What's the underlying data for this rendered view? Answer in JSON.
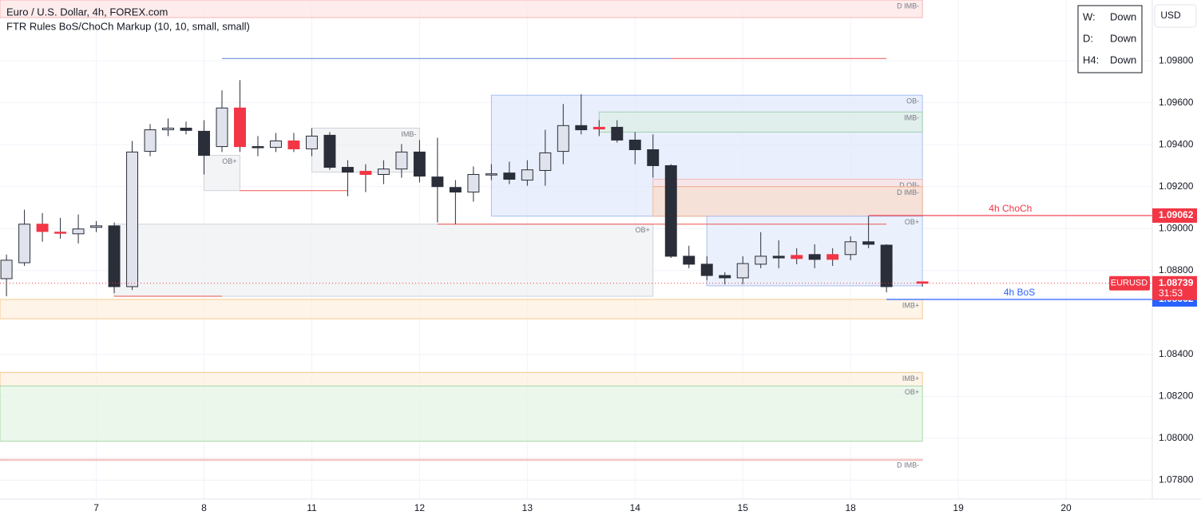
{
  "chart_data": {
    "type": "candlestick",
    "title": "Euro / U.S. Dollar, 4h, FOREX.com",
    "subtitle": "FTR Rules BoS/ChoCh Markup (10, 10, small, small)",
    "currency": "USD",
    "trend_table": [
      [
        "W:",
        "Down"
      ],
      [
        "D:",
        "Down"
      ],
      [
        "H4:",
        "Down"
      ]
    ],
    "xlim": [
      -0.36,
      63.8
    ],
    "ylim": [
      1.0771,
      1.1009
    ],
    "xticks": [
      {
        "value": 5,
        "label": "7"
      },
      {
        "value": 11,
        "label": "8"
      },
      {
        "value": 17,
        "label": "11"
      },
      {
        "value": 23,
        "label": "12"
      },
      {
        "value": 29,
        "label": "13"
      },
      {
        "value": 35,
        "label": "14"
      },
      {
        "value": 41,
        "label": "15"
      },
      {
        "value": 47,
        "label": "18"
      },
      {
        "value": 53,
        "label": "19"
      },
      {
        "value": 59,
        "label": "20"
      }
    ],
    "yticks": [
      {
        "value": 1.078,
        "label": "1.07800"
      },
      {
        "value": 1.08,
        "label": "1.08000"
      },
      {
        "value": 1.082,
        "label": "1.08200"
      },
      {
        "value": 1.084,
        "label": "1.08400"
      },
      {
        "value": 1.088,
        "label": "1.08800"
      },
      {
        "value": 1.09,
        "label": "1.09000"
      },
      {
        "value": 1.092,
        "label": "1.09200"
      },
      {
        "value": 1.094,
        "label": "1.09400"
      },
      {
        "value": 1.096,
        "label": "1.09600"
      },
      {
        "value": 1.098,
        "label": "1.09800"
      }
    ],
    "zones": [
      {
        "x0": -0.36,
        "x1": 51,
        "from": 1.1009,
        "to": 1.10006,
        "label": "D IMB-",
        "fill": "#fde4e4",
        "stroke": "#f5b5b5"
      },
      {
        "x0": 27,
        "x1": 51,
        "from": 1.09636,
        "to": 1.09059,
        "label": "OB-",
        "fill": "#dfe8fb",
        "stroke": "#a9bff2"
      },
      {
        "x0": 33,
        "x1": 51,
        "from": 1.09556,
        "to": 1.0946,
        "label": "IMB-",
        "fill": "#dcefe4",
        "stroke": "#9fd1b2"
      },
      {
        "x0": 36,
        "x1": 51,
        "from": 1.09235,
        "to": 1.092,
        "label": "D OB-",
        "fill": "#fbe2e2",
        "stroke": "#f2b8b8"
      },
      {
        "x0": 36,
        "x1": 51,
        "from": 1.092,
        "to": 1.09059,
        "label": "D IMB-",
        "fill": "#fbdcc9",
        "stroke": "#f4b48f"
      },
      {
        "x0": 39,
        "x1": 51,
        "from": 1.09059,
        "to": 1.08727,
        "label": "OB+",
        "fill": "#e3ebfb",
        "stroke": "#a9bff2"
      },
      {
        "x0": 6,
        "x1": 36,
        "from": 1.09021,
        "to": 1.08677,
        "label": "OB+",
        "fill": "#eeeff2",
        "stroke": "#d0d3da"
      },
      {
        "x0": 11,
        "x1": 13,
        "from": 1.09349,
        "to": 1.09181,
        "label": "OB+",
        "fill": "#eeeff2",
        "stroke": "#d0d3da"
      },
      {
        "x0": 17,
        "x1": 23,
        "from": 1.09479,
        "to": 1.09269,
        "label": "IMB-",
        "fill": "#eeeff2",
        "stroke": "#d0d3da"
      },
      {
        "x0": -0.36,
        "x1": 51,
        "from": 1.08662,
        "to": 1.0857,
        "label": "IMB+",
        "fill": "#fdefde",
        "stroke": "#f6c88f"
      },
      {
        "x0": -0.36,
        "x1": 51,
        "from": 1.08314,
        "to": 1.08249,
        "label": "IMB+",
        "fill": "#fdefde",
        "stroke": "#f6c88f"
      },
      {
        "x0": -0.36,
        "x1": 51,
        "from": 1.08249,
        "to": 1.07986,
        "label": "OB+",
        "fill": "#e4f4e4",
        "stroke": "#a8d8a8"
      },
      {
        "x0": -0.36,
        "x1": 51,
        "from": 1.079,
        "to": 1.07894,
        "label": "D IMB-",
        "fill": "#fbe2e2",
        "stroke": "#f2b8b8"
      }
    ],
    "levels": [
      {
        "value": 1.09811,
        "x0": 12,
        "x1": 37,
        "color": "#5b7fd6"
      },
      {
        "value": 1.09811,
        "x0": 37,
        "x1": 49,
        "color": "#ef5350"
      },
      {
        "value": 1.09181,
        "x0": 13,
        "x1": 19,
        "color": "#ef5350"
      },
      {
        "value": 1.09021,
        "x0": 24,
        "x1": 49,
        "color": "#ef5350"
      },
      {
        "value": 1.08677,
        "x0": 6,
        "x1": 12,
        "color": "#ef5350"
      }
    ],
    "signals": [
      {
        "label": "4h ChoCh",
        "value": 1.09062,
        "x0": 48,
        "color": "#f23645"
      },
      {
        "label": "4h BoS",
        "value": 1.08662,
        "x0": 49,
        "color": "#2962ff"
      }
    ],
    "last_price": {
      "symbol": "EURUSD",
      "value": 1.08739,
      "countdown": "31:53",
      "color": "#f23645"
    },
    "candles": [
      {
        "x": 0,
        "o": 1.08761,
        "h": 1.08876,
        "l": 1.08677,
        "c": 1.08849,
        "fill": "#e0e3eb"
      },
      {
        "x": 1,
        "o": 1.08837,
        "h": 1.0909,
        "l": 1.08822,
        "c": 1.09021,
        "fill": "#e0e3eb"
      },
      {
        "x": 2,
        "o": 1.09021,
        "h": 1.09074,
        "l": 1.08937,
        "c": 1.08986,
        "fill": "#f23645"
      },
      {
        "x": 3,
        "o": 1.08983,
        "h": 1.09051,
        "l": 1.08952,
        "c": 1.08979,
        "fill": "#f23645"
      },
      {
        "x": 4,
        "o": 1.08975,
        "h": 1.09067,
        "l": 1.08929,
        "c": 1.08998,
        "fill": "#e0e3eb"
      },
      {
        "x": 5,
        "o": 1.09006,
        "h": 1.09036,
        "l": 1.08983,
        "c": 1.09013,
        "fill": "#e0e3eb"
      },
      {
        "x": 6,
        "o": 1.09013,
        "h": 1.09029,
        "l": 1.08692,
        "c": 1.08723,
        "fill": "#2a2e39"
      },
      {
        "x": 7,
        "o": 1.08723,
        "h": 1.09418,
        "l": 1.08707,
        "c": 1.09365,
        "fill": "#e0e3eb"
      },
      {
        "x": 8,
        "o": 1.09368,
        "h": 1.09498,
        "l": 1.09345,
        "c": 1.09471,
        "fill": "#e0e3eb"
      },
      {
        "x": 9,
        "o": 1.09471,
        "h": 1.09525,
        "l": 1.09441,
        "c": 1.09479,
        "fill": "#e0e3eb"
      },
      {
        "x": 10,
        "o": 1.09479,
        "h": 1.0951,
        "l": 1.09449,
        "c": 1.09468,
        "fill": "#2a2e39"
      },
      {
        "x": 11,
        "o": 1.09464,
        "h": 1.09517,
        "l": 1.09258,
        "c": 1.09349,
        "fill": "#2a2e39"
      },
      {
        "x": 12,
        "o": 1.09391,
        "h": 1.09659,
        "l": 1.09365,
        "c": 1.09575,
        "fill": "#e0e3eb"
      },
      {
        "x": 13,
        "o": 1.09575,
        "h": 1.09708,
        "l": 1.09365,
        "c": 1.09391,
        "fill": "#f23645"
      },
      {
        "x": 14,
        "o": 1.09391,
        "h": 1.09441,
        "l": 1.09345,
        "c": 1.09387,
        "fill": "#2a2e39"
      },
      {
        "x": 15,
        "o": 1.09387,
        "h": 1.09456,
        "l": 1.09365,
        "c": 1.09418,
        "fill": "#e0e3eb"
      },
      {
        "x": 16,
        "o": 1.09418,
        "h": 1.09456,
        "l": 1.09365,
        "c": 1.0938,
        "fill": "#f23645"
      },
      {
        "x": 17,
        "o": 1.0938,
        "h": 1.09479,
        "l": 1.09345,
        "c": 1.09441,
        "fill": "#e0e3eb"
      },
      {
        "x": 18,
        "o": 1.09445,
        "h": 1.0946,
        "l": 1.0928,
        "c": 1.09292,
        "fill": "#2a2e39"
      },
      {
        "x": 19,
        "o": 1.09292,
        "h": 1.09326,
        "l": 1.09154,
        "c": 1.09269,
        "fill": "#2a2e39"
      },
      {
        "x": 20,
        "o": 1.09273,
        "h": 1.09307,
        "l": 1.09174,
        "c": 1.09258,
        "fill": "#f23645"
      },
      {
        "x": 21,
        "o": 1.09258,
        "h": 1.09326,
        "l": 1.09212,
        "c": 1.09284,
        "fill": "#e0e3eb"
      },
      {
        "x": 22,
        "o": 1.09284,
        "h": 1.09403,
        "l": 1.09242,
        "c": 1.09365,
        "fill": "#e0e3eb"
      },
      {
        "x": 23,
        "o": 1.09365,
        "h": 1.09422,
        "l": 1.0922,
        "c": 1.0925,
        "fill": "#2a2e39"
      },
      {
        "x": 24,
        "o": 1.09246,
        "h": 1.09433,
        "l": 1.09029,
        "c": 1.092,
        "fill": "#2a2e39"
      },
      {
        "x": 25,
        "o": 1.09196,
        "h": 1.09231,
        "l": 1.09021,
        "c": 1.09174,
        "fill": "#2a2e39"
      },
      {
        "x": 26,
        "o": 1.09174,
        "h": 1.09296,
        "l": 1.09128,
        "c": 1.09258,
        "fill": "#e0e3eb"
      },
      {
        "x": 27,
        "o": 1.09258,
        "h": 1.09307,
        "l": 1.09231,
        "c": 1.09261,
        "fill": "#e0e3eb"
      },
      {
        "x": 28,
        "o": 1.09265,
        "h": 1.09319,
        "l": 1.09212,
        "c": 1.09235,
        "fill": "#2a2e39"
      },
      {
        "x": 29,
        "o": 1.09231,
        "h": 1.09326,
        "l": 1.09204,
        "c": 1.0928,
        "fill": "#e0e3eb"
      },
      {
        "x": 30,
        "o": 1.09277,
        "h": 1.09471,
        "l": 1.09204,
        "c": 1.09361,
        "fill": "#e0e3eb"
      },
      {
        "x": 31,
        "o": 1.09368,
        "h": 1.09594,
        "l": 1.09307,
        "c": 1.09491,
        "fill": "#e0e3eb"
      },
      {
        "x": 32,
        "o": 1.09491,
        "h": 1.0964,
        "l": 1.09449,
        "c": 1.09471,
        "fill": "#2a2e39"
      },
      {
        "x": 33,
        "o": 1.09483,
        "h": 1.09517,
        "l": 1.09441,
        "c": 1.09475,
        "fill": "#f23645"
      },
      {
        "x": 34,
        "o": 1.09483,
        "h": 1.09517,
        "l": 1.0941,
        "c": 1.09422,
        "fill": "#2a2e39"
      },
      {
        "x": 35,
        "o": 1.09422,
        "h": 1.0946,
        "l": 1.09307,
        "c": 1.09376,
        "fill": "#2a2e39"
      },
      {
        "x": 36,
        "o": 1.09376,
        "h": 1.09449,
        "l": 1.09242,
        "c": 1.093,
        "fill": "#2a2e39"
      },
      {
        "x": 37,
        "o": 1.093,
        "h": 1.09307,
        "l": 1.0886,
        "c": 1.08868,
        "fill": "#2a2e39"
      },
      {
        "x": 38,
        "o": 1.08868,
        "h": 1.08918,
        "l": 1.08811,
        "c": 1.0883,
        "fill": "#2a2e39"
      },
      {
        "x": 39,
        "o": 1.0883,
        "h": 1.08868,
        "l": 1.08753,
        "c": 1.08776,
        "fill": "#2a2e39"
      },
      {
        "x": 40,
        "o": 1.08776,
        "h": 1.08792,
        "l": 1.08734,
        "c": 1.08765,
        "fill": "#2a2e39"
      },
      {
        "x": 41,
        "o": 1.08765,
        "h": 1.08868,
        "l": 1.08734,
        "c": 1.08833,
        "fill": "#e0e3eb"
      },
      {
        "x": 42,
        "o": 1.0883,
        "h": 1.08983,
        "l": 1.08811,
        "c": 1.08868,
        "fill": "#e0e3eb"
      },
      {
        "x": 43,
        "o": 1.08868,
        "h": 1.08944,
        "l": 1.08811,
        "c": 1.0886,
        "fill": "#2a2e39"
      },
      {
        "x": 44,
        "o": 1.08872,
        "h": 1.08906,
        "l": 1.0883,
        "c": 1.08857,
        "fill": "#f23645"
      },
      {
        "x": 45,
        "o": 1.08876,
        "h": 1.08925,
        "l": 1.08811,
        "c": 1.08853,
        "fill": "#2a2e39"
      },
      {
        "x": 46,
        "o": 1.08876,
        "h": 1.08906,
        "l": 1.08822,
        "c": 1.08853,
        "fill": "#f23645"
      },
      {
        "x": 47,
        "o": 1.08876,
        "h": 1.08963,
        "l": 1.08849,
        "c": 1.08937,
        "fill": "#e0e3eb"
      },
      {
        "x": 48,
        "o": 1.08937,
        "h": 1.09059,
        "l": 1.08906,
        "c": 1.08925,
        "fill": "#2a2e39"
      },
      {
        "x": 49,
        "o": 1.08921,
        "h": 1.08925,
        "l": 1.08696,
        "c": 1.08723,
        "fill": "#2a2e39"
      },
      {
        "x": 51,
        "o": 1.08746,
        "h": 1.08746,
        "l": 1.08723,
        "c": 1.08739,
        "fill": "#f23645"
      }
    ]
  }
}
